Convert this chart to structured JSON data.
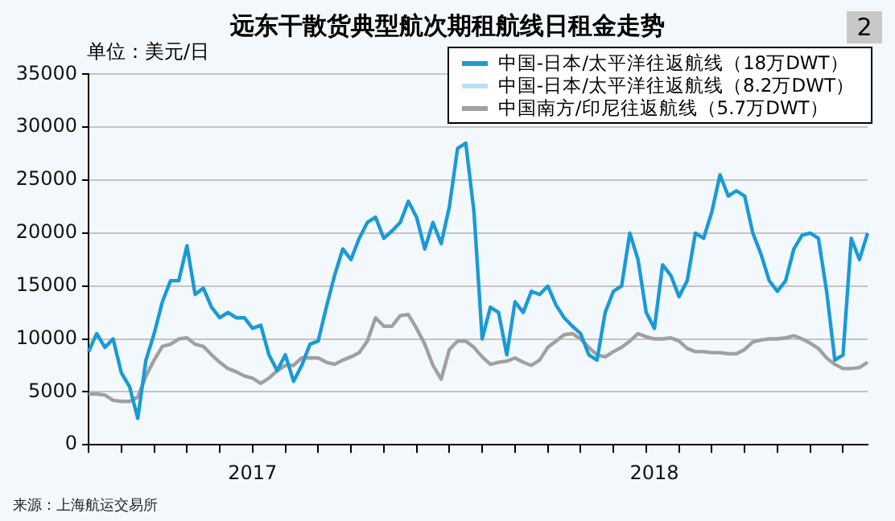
{
  "chart_data": {
    "type": "line",
    "title": "远东干散货典型航次期租航线日租金走势",
    "ylabel": "单位：美元/日",
    "annotations": [
      "2",
      "来源：上海航运交易所"
    ],
    "categories": [
      null,
      null,
      null,
      null,
      null,
      null,
      null,
      null,
      null,
      null,
      null,
      null,
      null,
      null,
      null,
      null,
      null,
      null,
      null,
      null,
      "2017",
      null,
      null,
      null,
      null,
      null,
      null,
      null,
      null,
      null,
      null,
      null,
      null,
      null,
      null,
      null,
      null,
      null,
      null,
      null,
      null,
      null,
      null,
      null,
      null,
      null,
      null,
      null,
      null,
      null,
      null,
      null,
      null,
      null,
      null,
      null,
      null,
      null,
      null,
      null,
      null,
      null,
      null,
      null,
      null,
      null,
      null,
      null,
      null,
      "2018",
      null,
      null,
      null,
      null,
      null,
      null,
      null,
      null,
      null,
      null,
      null,
      null,
      null,
      null,
      null,
      null,
      null,
      null,
      null,
      null,
      null,
      null,
      null,
      null,
      null,
      null
    ],
    "series": [
      {
        "name": "中国-日本/太平洋往返航线（18万DWT）",
        "color": "#1a9ad6",
        "values": [
          8800,
          10500,
          9200,
          10000,
          6800,
          5500,
          2500,
          8000,
          10500,
          13500,
          15500,
          15500,
          18800,
          14200,
          14800,
          13000,
          12000,
          12500,
          12000,
          12000,
          11000,
          11300,
          8500,
          7000,
          8500,
          6000,
          7500,
          9500,
          9800,
          13000,
          16000,
          18500,
          17500,
          19500,
          21000,
          21500,
          19500,
          20200,
          21000,
          23000,
          21500,
          18500,
          21000,
          19000,
          22500,
          28000,
          28500,
          22000,
          10000,
          13000,
          12500,
          8500,
          13500,
          12500,
          14500,
          14200,
          15000,
          13200,
          12000,
          11200,
          10500,
          8500,
          8000,
          12500,
          14500,
          15000,
          20000,
          17500,
          12500,
          11000,
          17000,
          16000,
          14000,
          15500,
          20000,
          19500,
          22000,
          25500,
          23500,
          24000,
          23500,
          20000,
          18000,
          15500,
          14500,
          15500,
          18500,
          19800,
          20000,
          19500,
          14500,
          8000,
          8500,
          19500,
          17500,
          20000
        ]
      },
      {
        "name": "中国-日本/太平洋往返航线（8.2万DWT）",
        "color": "#b8e0f2",
        "values": [
          null,
          null,
          null,
          null,
          null,
          null,
          null,
          null,
          null,
          null,
          null,
          null,
          null,
          null,
          null,
          null,
          null,
          null,
          null,
          null,
          null,
          null,
          null,
          null,
          null,
          null,
          null,
          null,
          null,
          null,
          null,
          null,
          null,
          null,
          null,
          null,
          null,
          null,
          null,
          null,
          null,
          null,
          null,
          null,
          null,
          null,
          null,
          null,
          null,
          null,
          null,
          null,
          null,
          null,
          null,
          null,
          null,
          null,
          null,
          null,
          null,
          null,
          null,
          null,
          null,
          null,
          null,
          null,
          null,
          null,
          null,
          null,
          null,
          null,
          null,
          null,
          null,
          null,
          null,
          null,
          null,
          null,
          null,
          null,
          null,
          null,
          null,
          null,
          null,
          null,
          null,
          null,
          null,
          null,
          null,
          null
        ]
      },
      {
        "name": "中国南方/印尼往返航线（5.7万DWT）",
        "color": "#a0a0a0",
        "values": [
          4800,
          4800,
          4700,
          4200,
          4100,
          4100,
          4500,
          6500,
          8000,
          9300,
          9500,
          10000,
          10100,
          9500,
          9300,
          8500,
          7800,
          7200,
          6900,
          6500,
          6300,
          5800,
          6300,
          7000,
          7500,
          7500,
          8200,
          8200,
          8200,
          7800,
          7600,
          8000,
          8300,
          8700,
          9800,
          12000,
          11200,
          11200,
          12200,
          12300,
          11000,
          9500,
          7500,
          6200,
          9000,
          9800,
          9800,
          9200,
          8300,
          7600,
          7800,
          7900,
          8200,
          7800,
          7500,
          8000,
          9200,
          9800,
          10400,
          10500,
          10000,
          9200,
          8500,
          8300,
          8800,
          9200,
          9800,
          10500,
          10200,
          10000,
          10000,
          10100,
          9800,
          9100,
          8800,
          8800,
          8700,
          8700,
          8600,
          8600,
          9000,
          9700,
          9900,
          10000,
          10000,
          10100,
          10300,
          10000,
          9600,
          9100,
          8200,
          7600,
          7200,
          7200,
          7300,
          7800
        ]
      }
    ],
    "ylim": [
      0,
      35000
    ],
    "yticks": [
      0,
      5000,
      10000,
      15000,
      20000,
      25000,
      30000,
      35000
    ],
    "grid": "y",
    "legend": "top right",
    "marker": "none",
    "line_style": "solid"
  }
}
